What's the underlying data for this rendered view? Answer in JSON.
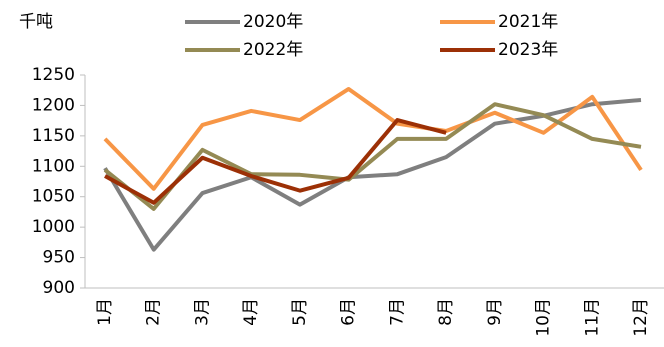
{
  "chart_data": {
    "type": "line",
    "y_label": "千吨",
    "categories": [
      "1月",
      "2月",
      "3月",
      "4月",
      "5月",
      "6月",
      "7月",
      "8月",
      "9月",
      "10月",
      "11月",
      "12月"
    ],
    "series": [
      {
        "name": "2020年",
        "color": "#7f7f7f",
        "values": [
          1097,
          963,
          1056,
          1082,
          1037,
          1082,
          1087,
          1115,
          1170,
          1183,
          1202,
          1209
        ]
      },
      {
        "name": "2021年",
        "color": "#f79646",
        "values": [
          1145,
          1063,
          1168,
          1191,
          1176,
          1227,
          1170,
          1158,
          1188,
          1155,
          1214,
          1094
        ]
      },
      {
        "name": "2022年",
        "color": "#948a54",
        "values": [
          1094,
          1030,
          1127,
          1087,
          1086,
          1078,
          1145,
          1145,
          1202,
          1184,
          1145,
          1132
        ]
      },
      {
        "name": "2023年",
        "color": "#9c3006",
        "values": [
          1084,
          1040,
          1114,
          1084,
          1060,
          1081,
          1176,
          1155,
          null,
          null,
          null,
          null
        ]
      }
    ],
    "ylim": [
      900,
      1250
    ],
    "yticks": [
      900,
      950,
      1000,
      1050,
      1100,
      1150,
      1200,
      1250
    ],
    "legend": "top"
  }
}
